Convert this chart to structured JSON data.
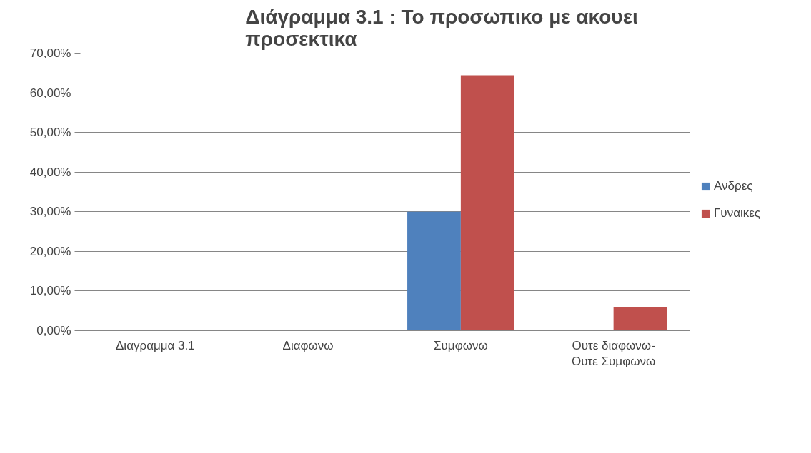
{
  "chart_data": {
    "type": "bar",
    "title": "Διάγραμμα 3.1 : Το προσωπικο με ακουει προσεκτικα",
    "categories": [
      "Διαγραμμα 3.1",
      "Διαφωνω",
      "Συμφωνω",
      "Ουτε διαφωνω-Ουτε Συμφωνω"
    ],
    "series": [
      {
        "name": "Ανδρες",
        "color": "#4f81bd",
        "values": [
          null,
          null,
          30,
          null
        ]
      },
      {
        "name": "Γυναικες",
        "color": "#c0504d",
        "values": [
          null,
          null,
          64.4,
          6
        ]
      }
    ],
    "ylim": [
      0,
      70
    ],
    "yticks": [
      {
        "value": 0,
        "label": "0,00%"
      },
      {
        "value": 10,
        "label": "10,00%"
      },
      {
        "value": 20,
        "label": "20,00%"
      },
      {
        "value": 30,
        "label": "30,00%"
      },
      {
        "value": 40,
        "label": "40,00%"
      },
      {
        "value": 50,
        "label": "50,00%"
      },
      {
        "value": 60,
        "label": "60,00%"
      },
      {
        "value": 70,
        "label": "70,00%"
      }
    ],
    "grid": "y",
    "legend": "right"
  }
}
